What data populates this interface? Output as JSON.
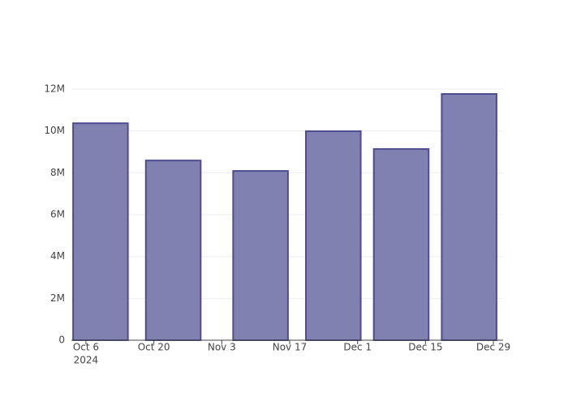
{
  "chart_data": {
    "type": "bar",
    "x": [
      "2024-10-09",
      "2024-10-24",
      "2024-11-11",
      "2024-11-26",
      "2024-12-10",
      "2024-12-24"
    ],
    "values": [
      10370000,
      8590000,
      8090000,
      9990000,
      9140000,
      11770000
    ],
    "bar_width_days": 11.3,
    "color": "#8080b1",
    "edge_color": "#4d4d8f",
    "xlim": [
      "2024-10-03",
      "2024-12-31"
    ],
    "xticks": [
      {
        "value": "2024-10-06",
        "label": "Oct 6"
      },
      {
        "value": "2024-10-20",
        "label": "Oct 20"
      },
      {
        "value": "2024-11-03",
        "label": "Nov 3"
      },
      {
        "value": "2024-11-17",
        "label": "Nov 17"
      },
      {
        "value": "2024-12-01",
        "label": "Dec 1"
      },
      {
        "value": "2024-12-15",
        "label": "Dec 15"
      },
      {
        "value": "2024-12-29",
        "label": "Dec 29"
      }
    ],
    "xtick_year": "2024",
    "ylim": [
      0,
      12390000
    ],
    "yticks": [
      0,
      {
        "value": 2000000,
        "label": "2M"
      },
      {
        "value": 4000000,
        "label": "4M"
      },
      {
        "value": 6000000,
        "label": "6M"
      },
      {
        "value": 8000000,
        "label": "8M"
      },
      {
        "value": 10000000,
        "label": "10M"
      },
      {
        "value": 12000000,
        "label": "12M"
      }
    ],
    "grid": true
  }
}
